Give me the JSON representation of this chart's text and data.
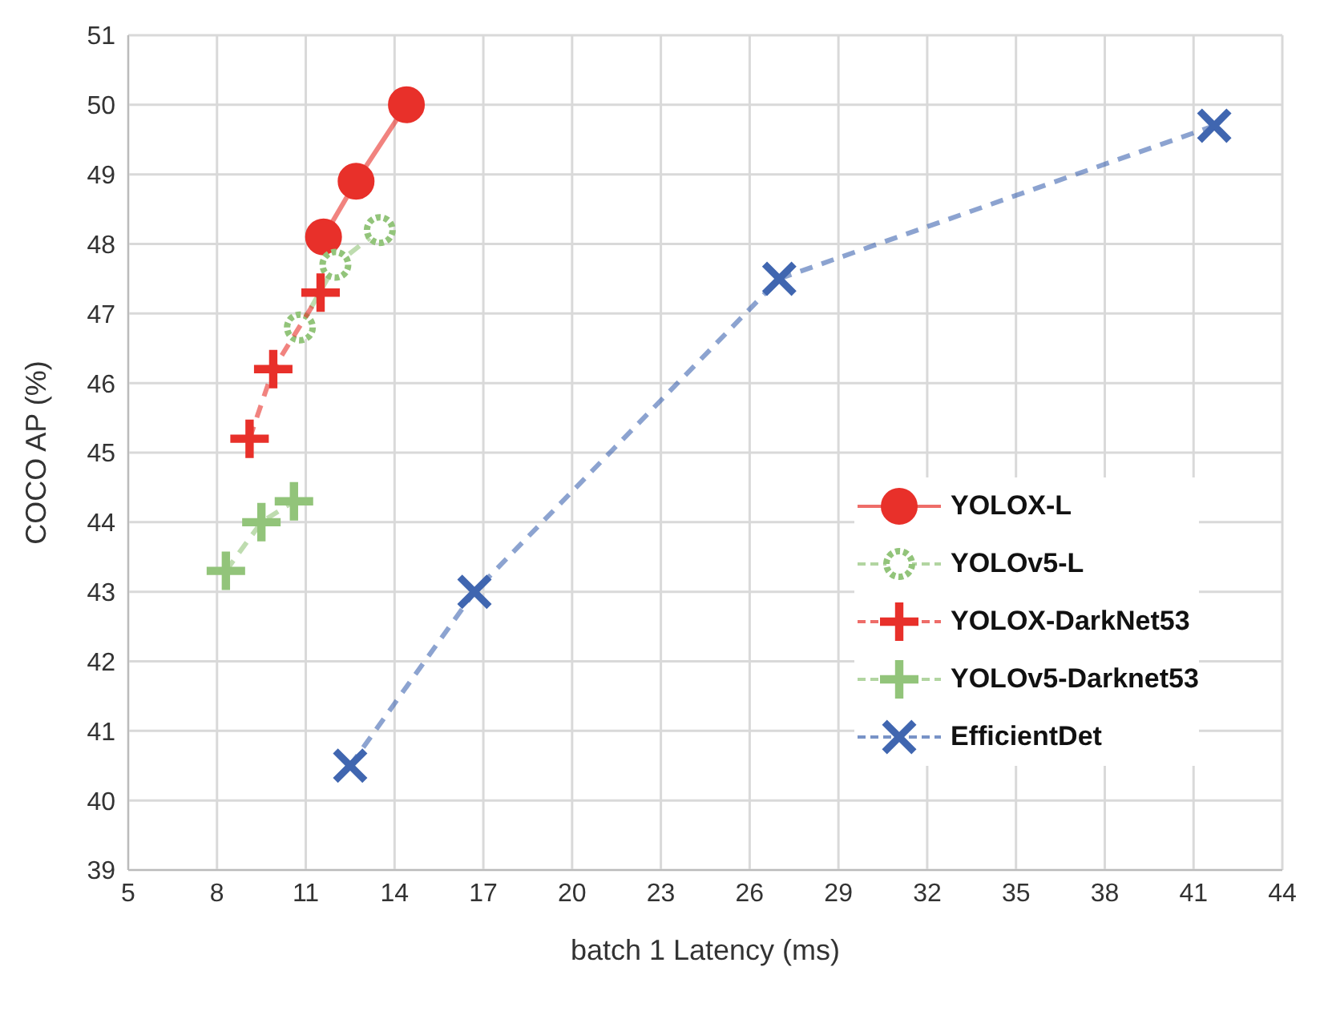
{
  "chart_data": {
    "type": "line",
    "xlabel": "batch 1 Latency (ms)",
    "ylabel": "COCO AP (%)",
    "xlim": [
      5,
      44
    ],
    "xticks": [
      5,
      8,
      11,
      14,
      17,
      20,
      23,
      26,
      29,
      32,
      35,
      38,
      41,
      44
    ],
    "ylim": [
      39,
      51
    ],
    "yticks": [
      39,
      40,
      41,
      42,
      43,
      44,
      45,
      46,
      47,
      48,
      49,
      50,
      51
    ],
    "grid": true,
    "legend": "right",
    "series": [
      {
        "name": "YOLOX-L",
        "color": "#e8302a",
        "x": [
          11.6,
          12.7,
          14.4
        ],
        "values": [
          48.1,
          48.9,
          50.0
        ],
        "marker": "circle",
        "line_style": "solid"
      },
      {
        "name": "YOLOv5-L",
        "color": "#92c47a",
        "x": [
          10.8,
          12.0,
          13.5
        ],
        "values": [
          46.8,
          47.7,
          48.2
        ],
        "marker": "circle",
        "line_style": "dashed"
      },
      {
        "name": "YOLOX-DarkNet53",
        "color": "#e8302a",
        "x": [
          9.1,
          9.9,
          11.5
        ],
        "values": [
          45.2,
          46.2,
          47.3
        ],
        "marker": "cross",
        "line_style": "dashed"
      },
      {
        "name": "YOLOv5-Darknet53",
        "color": "#92c47a",
        "x": [
          8.3,
          9.5,
          10.6
        ],
        "values": [
          43.3,
          44.0,
          44.3
        ],
        "marker": "cross",
        "line_style": "dashed"
      },
      {
        "name": "EfficientDet",
        "color": "#4066b0",
        "x": [
          12.5,
          16.7,
          27.0,
          41.7
        ],
        "values": [
          40.5,
          43.0,
          47.5,
          49.7
        ],
        "marker": "x",
        "line_style": "dashed"
      }
    ]
  }
}
